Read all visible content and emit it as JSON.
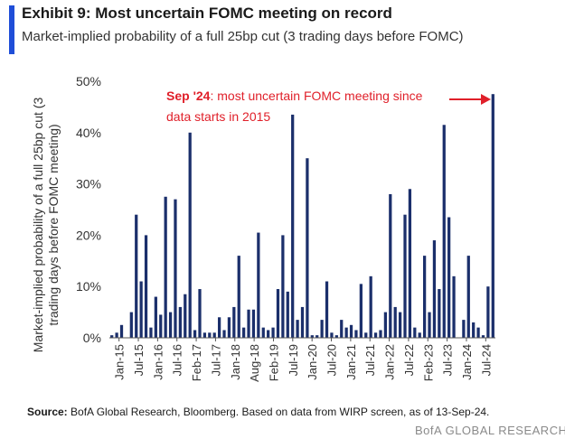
{
  "header": {
    "title": "Exhibit 9: Most uncertain FOMC meeting on record",
    "subtitle": "Market-implied probability of a full 25bp cut (3 trading days before FOMC)"
  },
  "footer": {
    "source_label": "Source:",
    "source_text": "BofA Global Research, Bloomberg. Based on data from WIRP screen, as of 13-Sep-24.",
    "brand": "BofA GLOBAL RESEARCH"
  },
  "colors": {
    "bar": "#1b2f6b",
    "annotation": "#e0202a",
    "accent": "#1f4ed8",
    "axis": "#555555"
  },
  "chart_data": {
    "type": "bar",
    "title": "Exhibit 9: Most uncertain FOMC meeting on record",
    "ylabel": "Market-implied probability of a full 25bp cut (3 trading days before FOMC meeting)",
    "ylim": [
      0,
      50
    ],
    "yticks": [
      "0%",
      "10%",
      "20%",
      "30%",
      "40%",
      "50%"
    ],
    "xtick_labels": [
      "Jan-15",
      "Jul-15",
      "Jan-16",
      "Jul-16",
      "Feb-17",
      "Jul-17",
      "Jan-18",
      "Aug-18",
      "Feb-19",
      "Jul-19",
      "Jan-20",
      "Jul-20",
      "Jan-21",
      "Jul-21",
      "Jan-22",
      "Jul-22",
      "Feb-23",
      "Jul-23",
      "Jan-24",
      "Jul-24"
    ],
    "values": [
      0.5,
      1,
      2.5,
      0,
      5,
      24,
      11,
      20,
      2,
      8,
      4.5,
      27.5,
      5,
      27,
      6,
      8.5,
      40,
      1.5,
      9.5,
      1,
      1,
      1,
      4,
      1.5,
      4,
      6,
      16,
      2,
      5.5,
      5.5,
      20.5,
      2,
      1.5,
      2,
      9.5,
      20,
      9,
      43.5,
      3.5,
      6,
      35,
      0.5,
      0.5,
      3.5,
      11,
      1,
      0.5,
      3.5,
      2,
      2.5,
      1.5,
      10.5,
      1,
      12,
      1,
      1.5,
      5,
      28,
      6,
      5,
      24,
      29,
      2,
      1,
      16,
      5,
      19,
      9.5,
      41.5,
      23.5,
      12,
      0,
      3.5,
      16,
      3,
      2,
      0.5,
      10,
      47.5
    ],
    "annotation": {
      "bold": "Sep '24",
      "text_line1": ": most uncertain FOMC meeting since",
      "text_line2": "data starts in 2015"
    },
    "grid": false,
    "legend": "none"
  }
}
